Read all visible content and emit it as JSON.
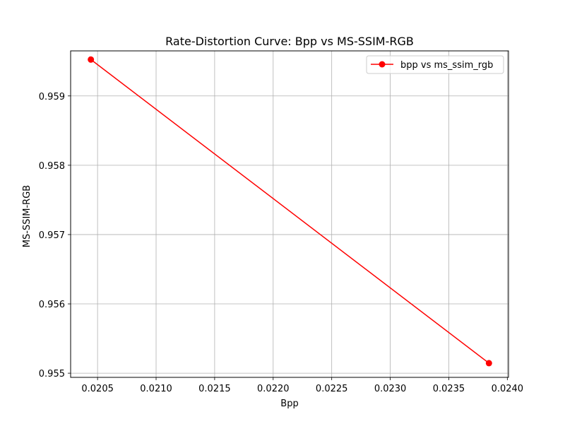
{
  "chart_data": {
    "type": "line",
    "title": "Rate-Distortion Curve: Bpp vs MS-SSIM-RGB",
    "xlabel": "Bpp",
    "ylabel": "MS-SSIM-RGB",
    "xlim": [
      0.02027,
      0.02401
    ],
    "ylim": [
      0.95494,
      0.95965
    ],
    "x_ticks": [
      0.0205,
      0.021,
      0.0215,
      0.022,
      0.0225,
      0.023,
      0.0235,
      0.024
    ],
    "x_tick_labels": [
      "0.0205",
      "0.0210",
      "0.0215",
      "0.0220",
      "0.0225",
      "0.0230",
      "0.0235",
      "0.0240"
    ],
    "y_ticks": [
      0.955,
      0.956,
      0.957,
      0.958,
      0.959
    ],
    "y_tick_labels": [
      "0.955",
      "0.956",
      "0.957",
      "0.958",
      "0.959"
    ],
    "grid": true,
    "legend_position": "top-right",
    "series": [
      {
        "name": "bpp vs ms_ssim_rgb",
        "color": "#ff0000",
        "marker": "circle",
        "x": [
          0.020443,
          0.023843
        ],
        "y": [
          0.959525,
          0.955145
        ]
      }
    ]
  }
}
